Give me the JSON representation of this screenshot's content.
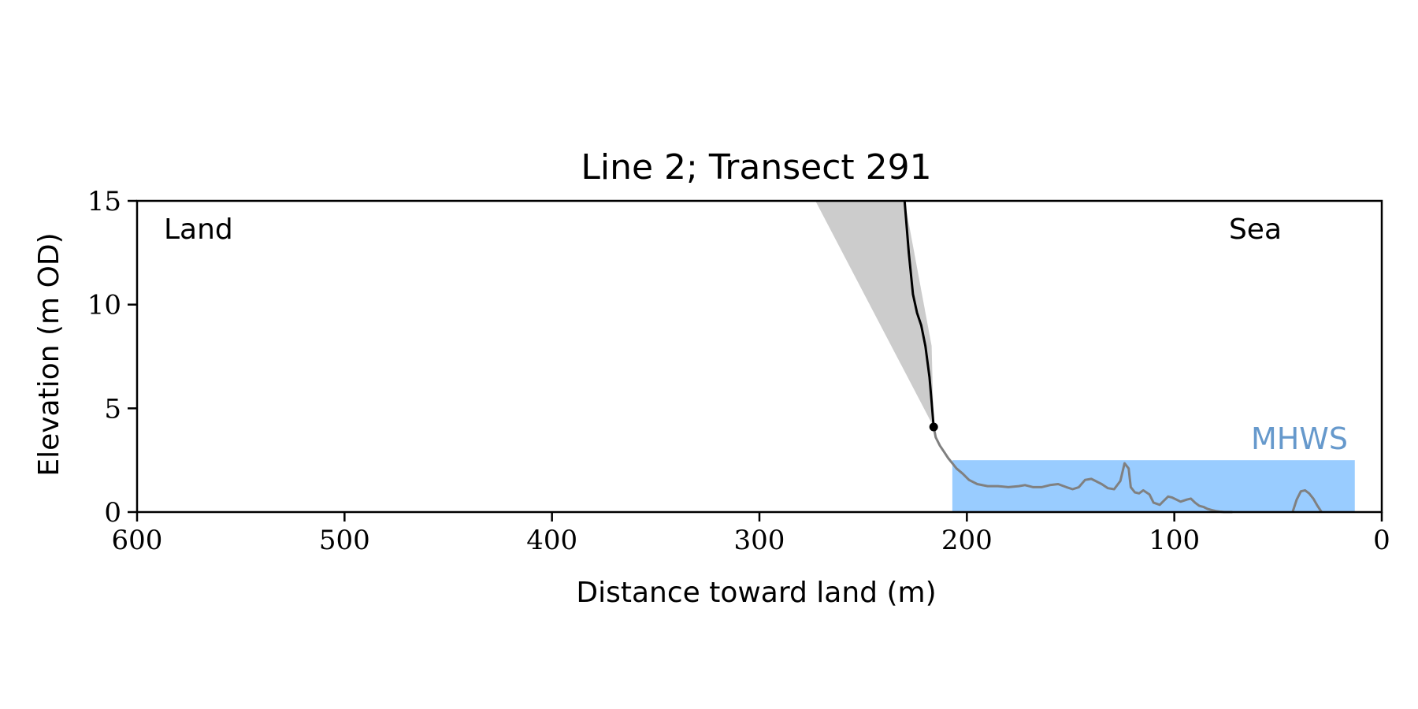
{
  "chart_data": {
    "type": "line",
    "title": "Line 2; Transect 291",
    "xlabel": "Distance toward land (m)",
    "ylabel": "Elevation (m OD)",
    "xlim": [
      600,
      0
    ],
    "ylim": [
      0,
      15
    ],
    "x_reversed": true,
    "x_ticks": [
      600,
      500,
      400,
      300,
      200,
      100,
      0
    ],
    "y_ticks": [
      0,
      5,
      10,
      15
    ],
    "x_tick_labels": [
      "600",
      "500",
      "400",
      "300",
      "200",
      "100",
      "0"
    ],
    "y_tick_labels": [
      "0",
      "5",
      "10",
      "15"
    ],
    "grid": false,
    "annotations": {
      "land": "Land",
      "sea": "Sea",
      "mhws": "MHWS"
    },
    "mhws": {
      "level": 2.5,
      "x_start": 207,
      "x_end": 13
    },
    "shaded_wedge": {
      "points": [
        [
          273,
          15
        ],
        [
          230,
          15
        ],
        [
          217,
          8
        ],
        [
          216,
          4.1
        ]
      ]
    },
    "cliff_toe": {
      "x": 216,
      "y": 4.1
    },
    "series": [
      {
        "role": "cliff",
        "color": "#000000",
        "x": [
          230,
          228,
          226,
          224,
          222,
          220,
          218,
          217,
          216
        ],
        "y": [
          15,
          12.5,
          10.5,
          9.6,
          9.0,
          8.0,
          6.5,
          5.3,
          4.1
        ]
      },
      {
        "role": "beach",
        "color": "#808080",
        "x": [
          216,
          215,
          213,
          211,
          209,
          207,
          205,
          202,
          199,
          195,
          190,
          185,
          180,
          175,
          172,
          168,
          164,
          160,
          156,
          152,
          149,
          146,
          143,
          140,
          138,
          135,
          132,
          129,
          126,
          124,
          122,
          121,
          119,
          117,
          115,
          112,
          110,
          107,
          105,
          103,
          101,
          99,
          97,
          94,
          92,
          90,
          88,
          86,
          84,
          82,
          80,
          78,
          76,
          74,
          72
        ],
        "y": [
          4.1,
          3.6,
          3.2,
          2.9,
          2.6,
          2.35,
          2.1,
          1.85,
          1.55,
          1.35,
          1.25,
          1.25,
          1.2,
          1.25,
          1.3,
          1.2,
          1.2,
          1.3,
          1.35,
          1.2,
          1.1,
          1.2,
          1.55,
          1.6,
          1.5,
          1.35,
          1.15,
          1.1,
          1.5,
          2.35,
          2.1,
          1.2,
          0.95,
          0.9,
          1.05,
          0.85,
          0.45,
          0.35,
          0.55,
          0.75,
          0.7,
          0.6,
          0.5,
          0.6,
          0.65,
          0.45,
          0.3,
          0.25,
          0.15,
          0.1,
          0.05,
          0.02,
          0.0,
          0.0,
          0.0
        ]
      },
      {
        "role": "sandbar",
        "color": "#808080",
        "x": [
          43,
          41,
          39,
          37,
          35,
          33,
          31,
          29
        ],
        "y": [
          0.0,
          0.6,
          1.0,
          1.05,
          0.9,
          0.65,
          0.3,
          0.0
        ]
      }
    ]
  }
}
